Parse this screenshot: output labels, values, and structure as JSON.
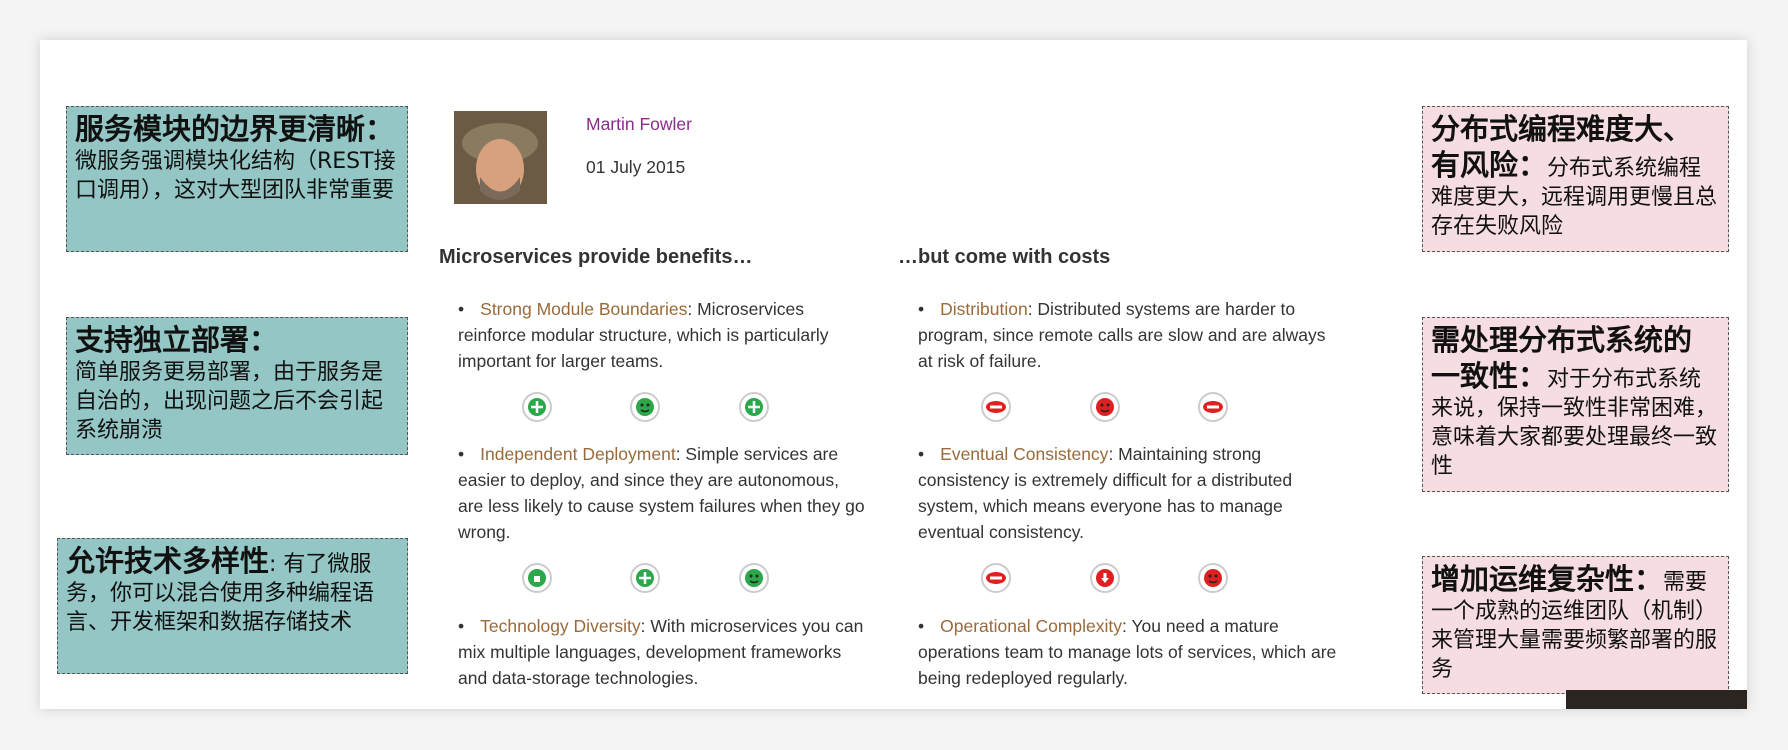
{
  "author": {
    "name": "Martin Fowler",
    "date": "01 July 2015"
  },
  "benefits": {
    "heading": "Microservices provide benefits…",
    "items": [
      {
        "term": "Strong Module Boundaries",
        "text": ": Microservices reinforce modular structure, which is particularly important for larger teams."
      },
      {
        "term": "Independent Deployment",
        "text": ": Simple services are easier to deploy, and since they are autonomous, are less likely to cause system failures when they go wrong."
      },
      {
        "term": "Technology Diversity",
        "text": ": With microservices you can mix multiple languages, development frameworks and data-storage technologies."
      }
    ]
  },
  "costs": {
    "heading": "…but come with costs",
    "items": [
      {
        "term": "Distribution",
        "text": ": Distributed systems are harder to program, since remote calls are slow and are always at risk of failure."
      },
      {
        "term": "Eventual Consistency",
        "text": ": Maintaining strong consistency is extremely difficult for a distributed system, which means everyone has to manage eventual consistency."
      },
      {
        "term": "Operational Complexity",
        "text": ": You need a mature operations team to manage lots of services, which are being redeployed regularly."
      }
    ]
  },
  "left_notes": [
    {
      "title": "服务模块的边界更清晰：",
      "body": "微服务强调模块化结构（REST接口调用），这对大型团队非常重要"
    },
    {
      "title": "支持独立部署：",
      "body": "简单服务更易部署，由于服务是自治的，出现问题之后不会引起系统崩溃"
    },
    {
      "title": "允许技术多样性",
      "body": ": 有了微服务，你可以混合使用多种编程语言、开发框架和数据存储技术"
    }
  ],
  "right_notes": [
    {
      "title": "分布式编程难度大、有风险：",
      "body": "分布式系统编程难度更大，远程调用更慢且总存在失败风险"
    },
    {
      "title": "需处理分布式系统的一致性：",
      "body": "对于分布式系统来说，保持一致性非常困难，意味着大家都要处理最终一致性"
    },
    {
      "title": "增加运维复杂性：",
      "body": "需要一个成熟的运维团队（机制）来管理大量需要频繁部署的服务"
    }
  ]
}
